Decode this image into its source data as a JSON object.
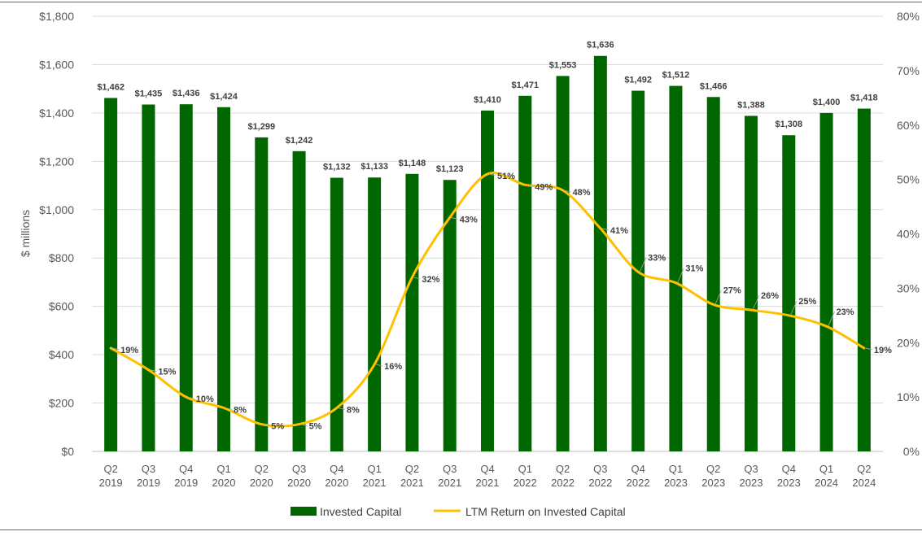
{
  "chart_data": {
    "type": "bar",
    "categories": [
      [
        "Q2",
        "2019"
      ],
      [
        "Q3",
        "2019"
      ],
      [
        "Q4",
        "2019"
      ],
      [
        "Q1",
        "2020"
      ],
      [
        "Q2",
        "2020"
      ],
      [
        "Q3",
        "2020"
      ],
      [
        "Q4",
        "2020"
      ],
      [
        "Q1",
        "2021"
      ],
      [
        "Q2",
        "2021"
      ],
      [
        "Q3",
        "2021"
      ],
      [
        "Q4",
        "2021"
      ],
      [
        "Q1",
        "2022"
      ],
      [
        "Q2",
        "2022"
      ],
      [
        "Q3",
        "2022"
      ],
      [
        "Q4",
        "2022"
      ],
      [
        "Q1",
        "2023"
      ],
      [
        "Q2",
        "2023"
      ],
      [
        "Q3",
        "2023"
      ],
      [
        "Q4",
        "2023"
      ],
      [
        "Q1",
        "2024"
      ],
      [
        "Q2",
        "2024"
      ]
    ],
    "series": [
      {
        "name": "Invested Capital",
        "type": "bar",
        "axis": "left",
        "color": "#006600",
        "values": [
          1462,
          1435,
          1436,
          1424,
          1299,
          1242,
          1132,
          1133,
          1148,
          1123,
          1410,
          1471,
          1553,
          1636,
          1492,
          1512,
          1466,
          1388,
          1308,
          1400,
          1418
        ],
        "labels": [
          "$1,462",
          "$1,435",
          "$1,436",
          "$1,424",
          "$1,299",
          "$1,242",
          "$1,132",
          "$1,133",
          "$1,148",
          "$1,123",
          "$1,410",
          "$1,471",
          "$1,553",
          "$1,636",
          "$1,492",
          "$1,512",
          "$1,466",
          "$1,388",
          "$1,308",
          "$1,400",
          "$1,418"
        ]
      },
      {
        "name": "LTM Return on Invested Capital",
        "type": "line",
        "axis": "right",
        "color": "#FFC000",
        "values": [
          19,
          15,
          10,
          8,
          5,
          5,
          8,
          16,
          32,
          43,
          51,
          49,
          48,
          41,
          33,
          31,
          27,
          26,
          25,
          23,
          19
        ],
        "labels": [
          "19%",
          "15%",
          "10%",
          "8%",
          "5%",
          "5%",
          "8%",
          "16%",
          "32%",
          "43%",
          "51%",
          "49%",
          "48%",
          "41%",
          "33%",
          "31%",
          "27%",
          "26%",
          "25%",
          "23%",
          "19%"
        ]
      }
    ],
    "ylabel": "$ millions",
    "ylim": [
      0,
      1800
    ],
    "y_ticks": [
      0,
      200,
      400,
      600,
      800,
      1000,
      1200,
      1400,
      1600,
      1800
    ],
    "y_tick_labels": [
      "$0",
      "$200",
      "$400",
      "$600",
      "$800",
      "$1,000",
      "$1,200",
      "$1,400",
      "$1,600",
      "$1,800"
    ],
    "y2lim": [
      0,
      80
    ],
    "y2_ticks": [
      0,
      10,
      20,
      30,
      40,
      50,
      60,
      70,
      80
    ],
    "y2_tick_labels": [
      "0%",
      "10%",
      "20%",
      "30%",
      "40%",
      "50%",
      "60%",
      "70%",
      "80%"
    ],
    "grid": true,
    "legend_position": "bottom",
    "legend": [
      "Invested Capital",
      "LTM Return on Invested Capital"
    ]
  }
}
